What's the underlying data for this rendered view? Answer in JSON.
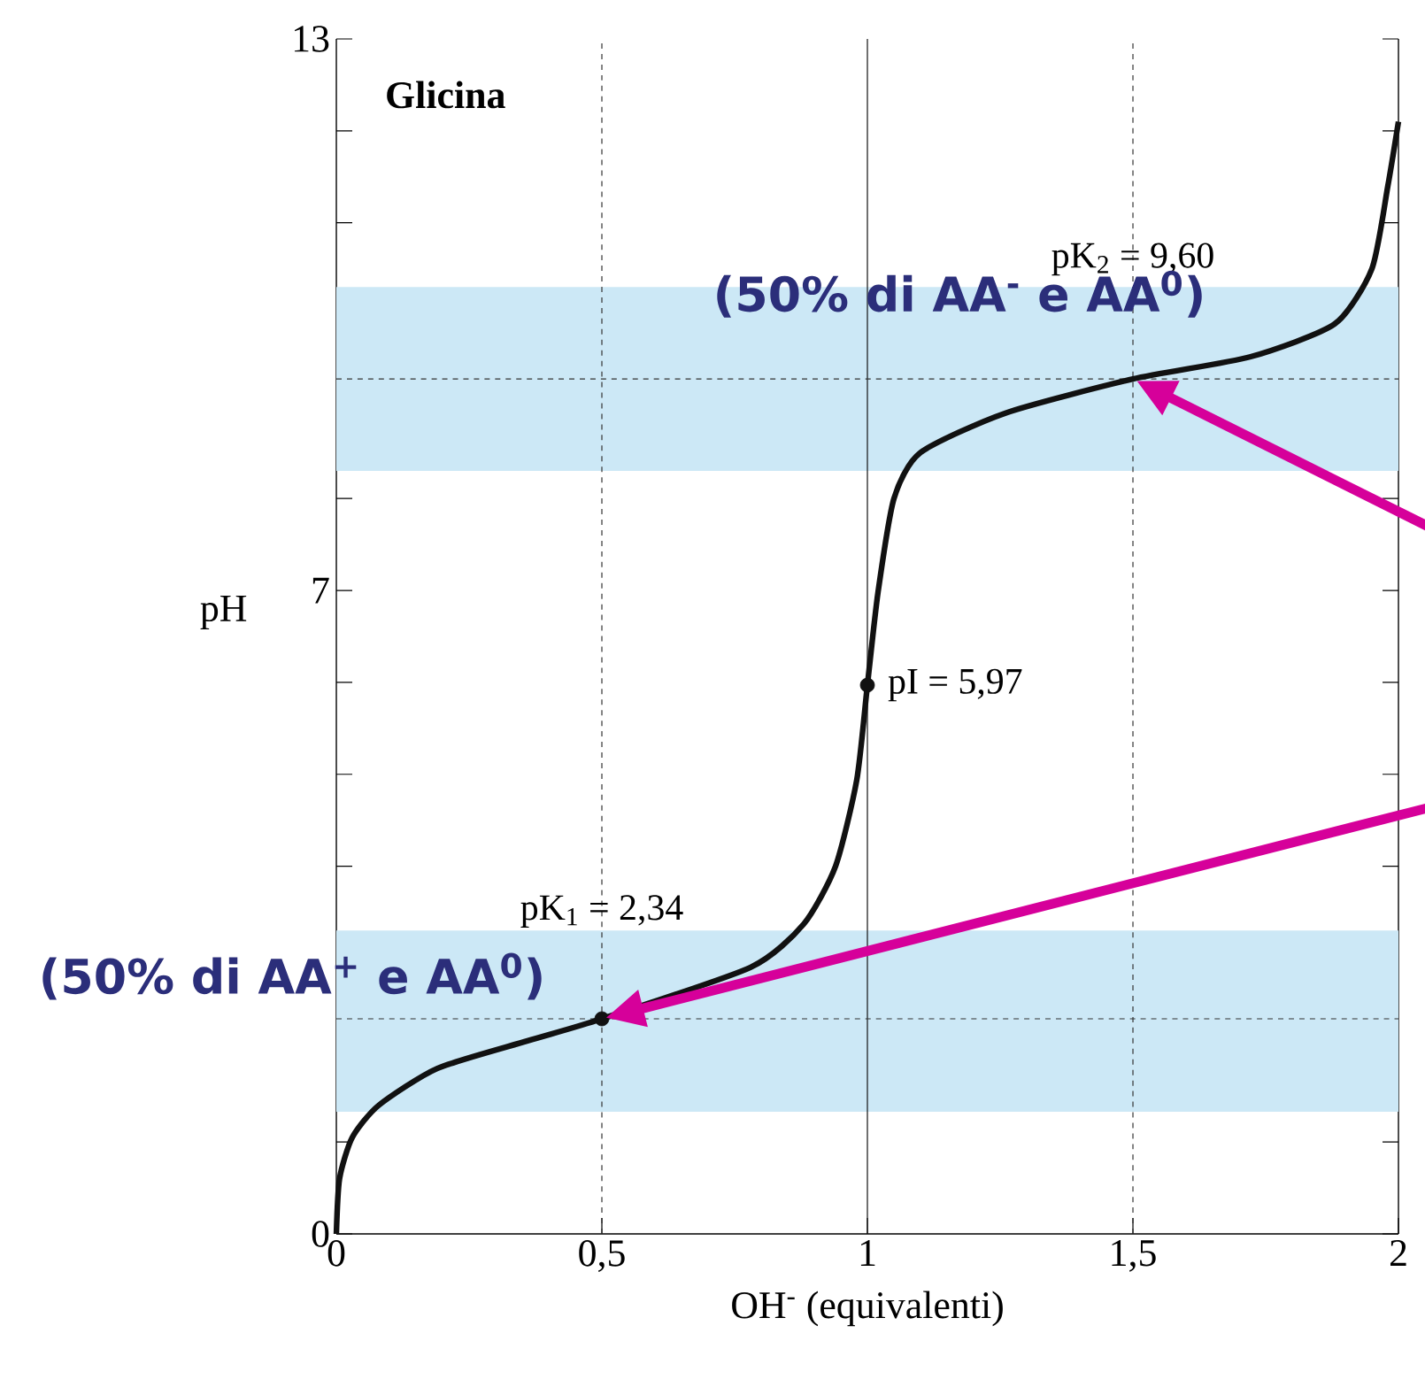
{
  "chart_data": {
    "type": "line",
    "title": "Glicina",
    "xlabel": "OH$^{-}$ (equivalenti)",
    "ylabel": "pH",
    "xlim": [
      0,
      2
    ],
    "ylim": [
      0,
      13
    ],
    "xticks": [
      0,
      {
        "value": 0.5,
        "label": "0,5"
      },
      1,
      {
        "value": 1.5,
        "label": "1,5"
      },
      2
    ],
    "yticks": [
      0,
      {
        "value": 1,
        "label": null
      },
      {
        "value": 2,
        "label": null
      },
      {
        "value": 3,
        "label": null
      },
      {
        "value": 4,
        "label": null
      },
      {
        "value": 5,
        "label": null
      },
      {
        "value": 6,
        "label": null
      },
      7,
      {
        "value": 8,
        "label": null
      },
      {
        "value": 9,
        "label": null
      },
      {
        "value": 10,
        "label": null
      },
      {
        "value": 11,
        "label": null
      },
      {
        "value": 12,
        "label": null
      },
      13
    ],
    "series": [
      {
        "color": "#111111",
        "x": [
          0,
          0.006,
          0.03,
          0.08,
          0.19,
          0.36,
          0.5,
          0.78,
          0.88,
          0.94,
          0.98,
          1.0,
          1.02,
          1.05,
          1.1,
          1.26,
          1.5,
          1.72,
          1.88,
          1.95,
          1.98,
          2.0
        ],
        "values": [
          0,
          0.6,
          1.05,
          1.4,
          1.8,
          2.1,
          2.34,
          2.9,
          3.37,
          4.0,
          4.94,
          5.97,
          6.98,
          8.0,
          8.5,
          8.93,
          9.3,
          9.54,
          9.9,
          10.5,
          11.4,
          12.1
        ]
      },
      {
        "type": "scatter",
        "color": "#111111",
        "marker": "circle",
        "x": [
          0.5,
          1
        ],
        "values": [
          2.34,
          5.97
        ]
      }
    ],
    "ref_lines": [
      {
        "axis": "x",
        "value": 1,
        "color": "#111111",
        "line_style": "solid"
      },
      {
        "axis": "y",
        "value": 2.34,
        "color": "#333333",
        "line_style": "dashed"
      },
      {
        "axis": "x",
        "value": 0.5,
        "color": "#333333",
        "line_style": "dashed"
      },
      {
        "axis": "y",
        "value": 9.3,
        "color": "#333333",
        "line_style": "dashed"
      },
      {
        "axis": "x",
        "value": 1.5,
        "color": "#333333",
        "line_style": "dashed"
      }
    ],
    "bands": [
      {
        "axis": "y",
        "from": 1.33,
        "to": 3.3,
        "color": "#cce8f6"
      },
      {
        "axis": "y",
        "from": 8.3,
        "to": 10.3,
        "color": "#cce8f6"
      }
    ],
    "annotations": [
      {
        "text": "pK$_{1}$ = 2,34",
        "x": 0.5,
        "y": 2.34
      },
      {
        "text": "pI = 5,97",
        "x": 1,
        "y": 5.97
      },
      {
        "text": "pK$_{2}$ = 9,60",
        "x": 1.5,
        "y": 9.3
      },
      {
        "text": "(50% di AA$^{+}$ e AA$^{0}$)",
        "x": 0.5,
        "y": 2.34
      },
      {
        "text": "(50% di AA$^{-}$ e AA$^{0}$)",
        "x": 1.5,
        "y": 9.3
      }
    ],
    "grid": false
  }
}
